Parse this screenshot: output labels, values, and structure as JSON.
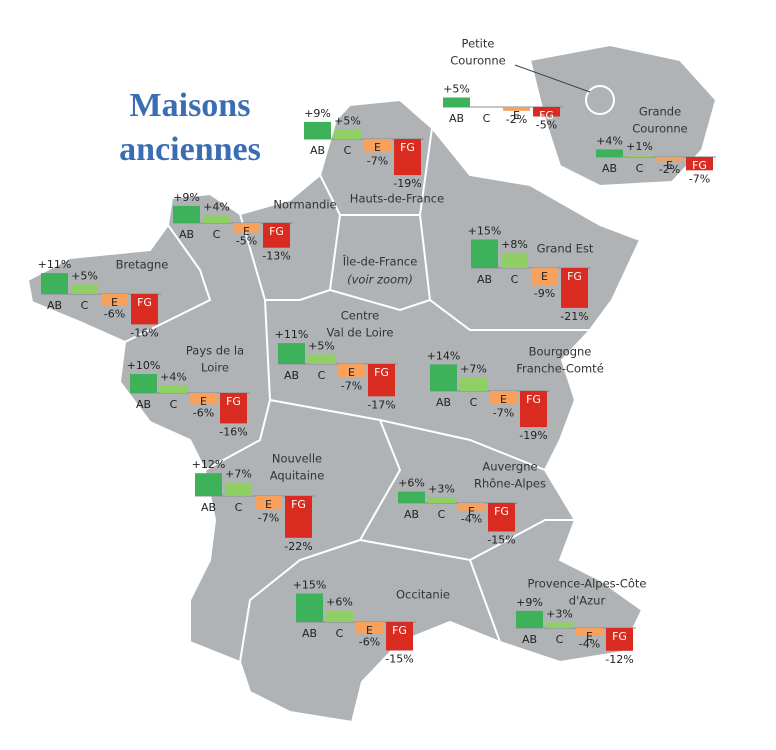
{
  "title": [
    "Maisons",
    "anciennes"
  ],
  "colors": [
    "#3db25a",
    "#8fcf64",
    "#f7a15c",
    "#d92b1f"
  ],
  "regions": [
    {
      "name": [
        "Hauts-de-France"
      ],
      "categories": [
        "AB",
        "C",
        "E",
        "FG"
      ],
      "values": [
        9,
        5,
        -7,
        -19
      ],
      "value_labels": [
        "+9%",
        "+5%",
        "-7%",
        "-19%"
      ]
    },
    {
      "name": [
        "Normandie"
      ],
      "categories": [
        "AB",
        "C",
        "E",
        "FG"
      ],
      "values": [
        9,
        4,
        -5,
        -13
      ],
      "value_labels": [
        "+9%",
        "+4%",
        "-5%",
        "-13%"
      ]
    },
    {
      "name": [
        "Bretagne"
      ],
      "categories": [
        "AB",
        "C",
        "E",
        "FG"
      ],
      "values": [
        11,
        5,
        -6,
        -16
      ],
      "value_labels": [
        "+11%",
        "+5%",
        "-6%",
        "-16%"
      ]
    },
    {
      "name": [
        "Île-de-France"
      ],
      "note": "(voir zoom)"
    },
    {
      "name": [
        "Grand Est"
      ],
      "categories": [
        "AB",
        "C",
        "E",
        "FG"
      ],
      "values": [
        15,
        8,
        -9,
        -21
      ],
      "value_labels": [
        "+15%",
        "+8%",
        "-9%",
        "-21%"
      ]
    },
    {
      "name": [
        "Centre",
        "Val de Loire"
      ],
      "categories": [
        "AB",
        "C",
        "E",
        "FG"
      ],
      "values": [
        11,
        5,
        -7,
        -17
      ],
      "value_labels": [
        "+11%",
        "+5%",
        "-7%",
        "-17%"
      ]
    },
    {
      "name": [
        "Pays de la",
        "Loire"
      ],
      "categories": [
        "AB",
        "C",
        "E",
        "FG"
      ],
      "values": [
        10,
        4,
        -6,
        -16
      ],
      "value_labels": [
        "+10%",
        "+4%",
        "-6%",
        "-16%"
      ]
    },
    {
      "name": [
        "Bourgogne",
        "Franche-Comté"
      ],
      "categories": [
        "AB",
        "C",
        "E",
        "FG"
      ],
      "values": [
        14,
        7,
        -7,
        -19
      ],
      "value_labels": [
        "+14%",
        "+7%",
        "-7%",
        "-19%"
      ]
    },
    {
      "name": [
        "Nouvelle",
        "Aquitaine"
      ],
      "categories": [
        "AB",
        "C",
        "E",
        "FG"
      ],
      "values": [
        12,
        7,
        -7,
        -22
      ],
      "value_labels": [
        "+12%",
        "+7%",
        "-7%",
        "-22%"
      ]
    },
    {
      "name": [
        "Auvergne",
        "Rhône-Alpes"
      ],
      "categories": [
        "AB",
        "C",
        "E",
        "FG"
      ],
      "values": [
        6,
        3,
        -4,
        -15
      ],
      "value_labels": [
        "+6%",
        "+3%",
        "-4%",
        "-15%"
      ]
    },
    {
      "name": [
        "Occitanie"
      ],
      "categories": [
        "AB",
        "C",
        "E",
        "FG"
      ],
      "values": [
        15,
        6,
        -6,
        -15
      ],
      "value_labels": [
        "+15%",
        "+6%",
        "-6%",
        "-15%"
      ]
    },
    {
      "name": [
        "Provence-Alpes-Côte",
        "d'Azur"
      ],
      "categories": [
        "AB",
        "C",
        "E",
        "FG"
      ],
      "values": [
        9,
        3,
        -4,
        -12
      ],
      "value_labels": [
        "+9%",
        "+3%",
        "-4%",
        "-12%"
      ]
    },
    {
      "name": [
        "Petite",
        "Couronne"
      ],
      "categories": [
        "AB",
        "C",
        "E",
        "FG"
      ],
      "values": [
        5,
        null,
        -2,
        -5
      ],
      "value_labels": [
        "+5%",
        null,
        "-2%",
        "-5%"
      ]
    },
    {
      "name": [
        "Grande",
        "Couronne"
      ],
      "categories": [
        "AB",
        "C",
        "E",
        "FG"
      ],
      "values": [
        4,
        1,
        -2,
        -7
      ],
      "value_labels": [
        "+4%",
        "+1%",
        "-2%",
        "-7%"
      ]
    }
  ]
}
